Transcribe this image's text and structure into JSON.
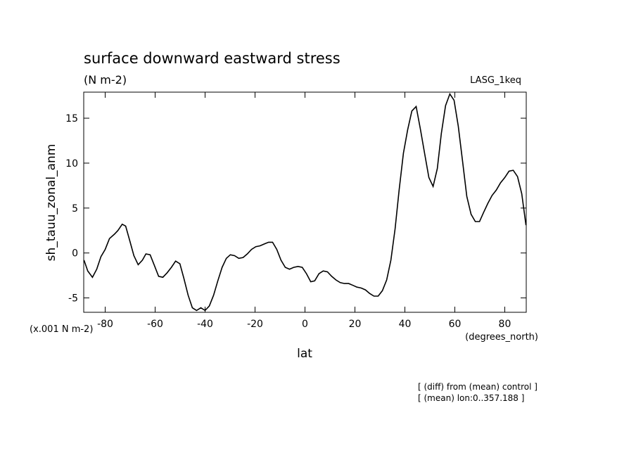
{
  "chart_data": {
    "type": "line",
    "title": "surface downward eastward stress",
    "subtitle": "(N m-2)",
    "experiment": "LASG_1keq",
    "y_label": "sh_tauu_zonal_anm",
    "y_units": "(x.001 N m-2)",
    "x_label": "lat",
    "x_units": "(degrees_north)",
    "notes": [
      "[ (diff) from (mean) control ]",
      "[ (mean) lon:0..357.188 ]"
    ],
    "color": "#000000",
    "xlim": [
      -88.6,
      88.6
    ],
    "xticks": [
      -80,
      -60,
      -40,
      -20,
      0,
      20,
      40,
      60,
      80
    ],
    "ylim": [
      -6.6,
      17.9
    ],
    "yticks": [
      -5,
      0,
      5,
      10,
      15
    ],
    "x": [
      -88.5,
      -87.0,
      -85.1,
      -83.4,
      -81.7,
      -80.0,
      -78.3,
      -76.3,
      -74.9,
      -73.2,
      -71.8,
      -70.1,
      -68.5,
      -66.8,
      -65.1,
      -63.7,
      -62.0,
      -60.3,
      -58.6,
      -56.9,
      -55.2,
      -53.5,
      -51.8,
      -50.1,
      -48.5,
      -46.8,
      -45.1,
      -43.4,
      -41.7,
      -40.0,
      -38.3,
      -36.6,
      -34.9,
      -33.2,
      -31.5,
      -29.9,
      -28.2,
      -26.5,
      -24.8,
      -23.1,
      -21.4,
      -19.7,
      -18.0,
      -16.3,
      -14.6,
      -13.0,
      -11.3,
      -9.6,
      -7.9,
      -6.2,
      -4.5,
      -2.8,
      -1.1,
      0.6,
      2.3,
      3.9,
      5.6,
      7.3,
      9.0,
      10.7,
      12.4,
      14.1,
      15.8,
      17.5,
      19.2,
      20.8,
      22.5,
      24.2,
      25.9,
      27.6,
      29.3,
      31.0,
      32.7,
      34.4,
      36.1,
      37.7,
      39.4,
      41.1,
      42.8,
      44.5,
      46.2,
      47.9,
      49.6,
      51.3,
      53.0,
      54.6,
      56.3,
      58.0,
      59.7,
      61.4,
      63.1,
      64.8,
      66.5,
      68.2,
      69.9,
      71.5,
      73.2,
      74.9,
      76.6,
      78.3,
      80.0,
      81.7,
      83.4,
      85.1,
      86.8,
      88.5
    ],
    "values": [
      -0.8,
      -2.0,
      -2.7,
      -1.8,
      -0.4,
      0.4,
      1.6,
      2.1,
      2.5,
      3.2,
      3.0,
      1.3,
      -0.3,
      -1.3,
      -0.8,
      -0.1,
      -0.2,
      -1.4,
      -2.6,
      -2.7,
      -2.2,
      -1.6,
      -0.9,
      -1.2,
      -2.8,
      -4.7,
      -6.1,
      -6.4,
      -6.1,
      -6.4,
      -5.9,
      -4.7,
      -3.1,
      -1.6,
      -0.6,
      -0.2,
      -0.3,
      -0.6,
      -0.5,
      -0.1,
      0.4,
      0.7,
      0.8,
      1.0,
      1.2,
      1.2,
      0.4,
      -0.8,
      -1.6,
      -1.8,
      -1.6,
      -1.5,
      -1.6,
      -2.3,
      -3.2,
      -3.1,
      -2.3,
      -2.0,
      -2.1,
      -2.6,
      -3.0,
      -3.3,
      -3.4,
      -3.4,
      -3.6,
      -3.8,
      -3.9,
      -4.1,
      -4.5,
      -4.8,
      -4.8,
      -4.2,
      -3.0,
      -0.8,
      2.7,
      7.0,
      11.1,
      13.7,
      15.8,
      16.3,
      13.8,
      11.1,
      8.4,
      7.4,
      9.4,
      13.3,
      16.4,
      17.7,
      17.0,
      14.1,
      10.2,
      6.3,
      4.3,
      3.5,
      3.5,
      4.5,
      5.5,
      6.4,
      7.0,
      7.8,
      8.4,
      9.1,
      9.2,
      8.5,
      6.6,
      3.1
    ]
  }
}
